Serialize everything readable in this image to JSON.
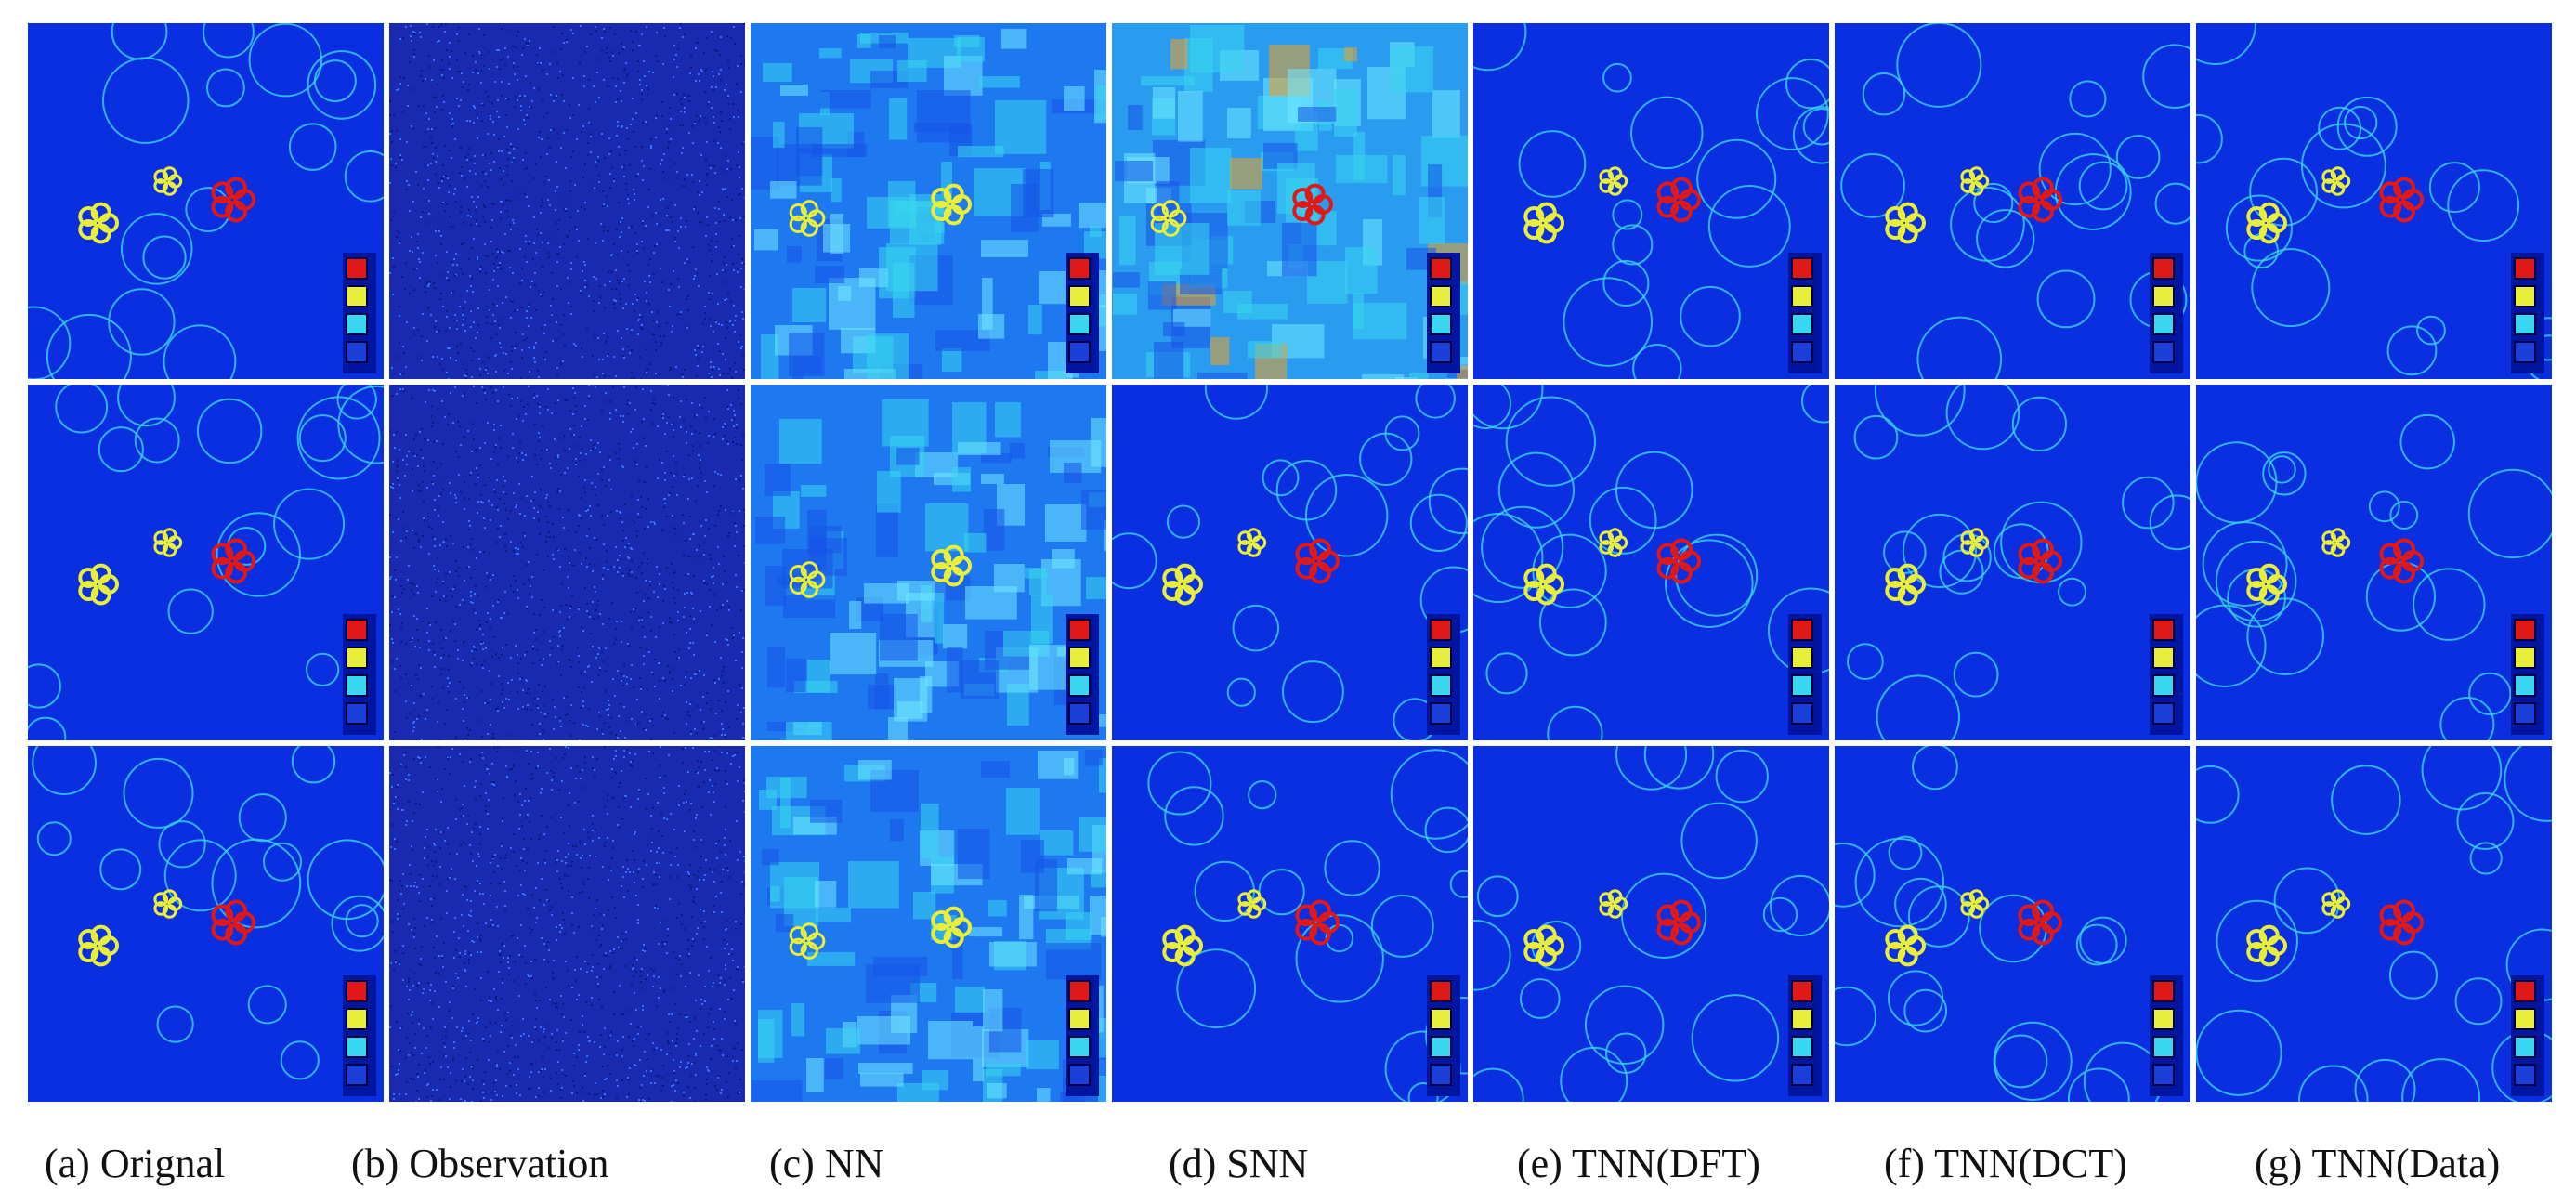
{
  "figure": {
    "captions": [
      {
        "id": "a",
        "label": "(a) Orignal"
      },
      {
        "id": "b",
        "label": "(b) Observation"
      },
      {
        "id": "c",
        "label": "(c) NN"
      },
      {
        "id": "d",
        "label": "(d) SNN"
      },
      {
        "id": "e",
        "label": "(e) TNN(DFT)"
      },
      {
        "id": "f",
        "label": "(f) TNN(DCT)"
      },
      {
        "id": "g",
        "label": "(g) TNN(Data)"
      }
    ],
    "rows": 3,
    "columns": 7,
    "colors": {
      "background": "#0a2fe0",
      "observation": "#1a2ab0",
      "cyan": "#38d6f0",
      "yellow": "#e8ef3a",
      "red": "#e01818",
      "dark_blue": "#0015a0"
    }
  }
}
